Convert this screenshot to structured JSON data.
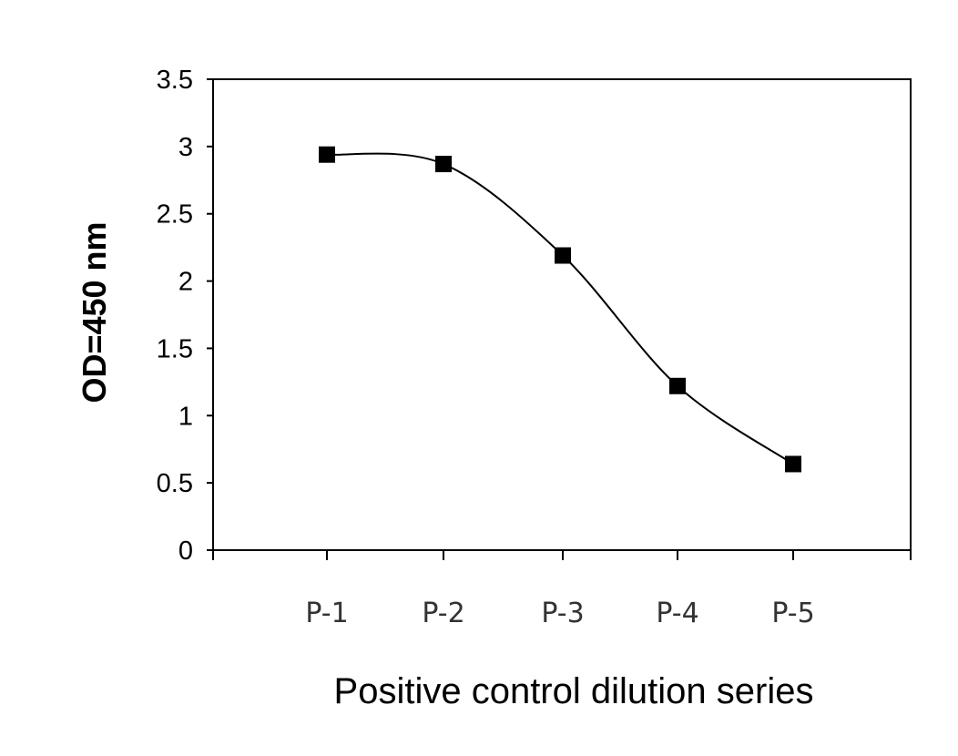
{
  "chart_data": {
    "type": "line",
    "categories": [
      "P-1",
      "P-2",
      "P-3",
      "P-4",
      "P-5"
    ],
    "series": [
      {
        "values": [
          2.94,
          2.87,
          2.19,
          1.22,
          0.64
        ]
      }
    ],
    "xlabel": "Positive control dilution series",
    "ylabel": "OD=450 nm",
    "ylim": [
      0,
      3.5
    ],
    "yticks": [
      "0",
      "0.5",
      "1",
      "1.5",
      "2",
      "2.5",
      "3",
      "3.5"
    ],
    "ytick_values": [
      0,
      0.5,
      1,
      1.5,
      2,
      2.5,
      3,
      3.5
    ],
    "grid": false,
    "marker": "square",
    "line_style": "smooth",
    "colors": {
      "line": "#000000",
      "marker": "#000000",
      "axis": "#000000"
    }
  }
}
